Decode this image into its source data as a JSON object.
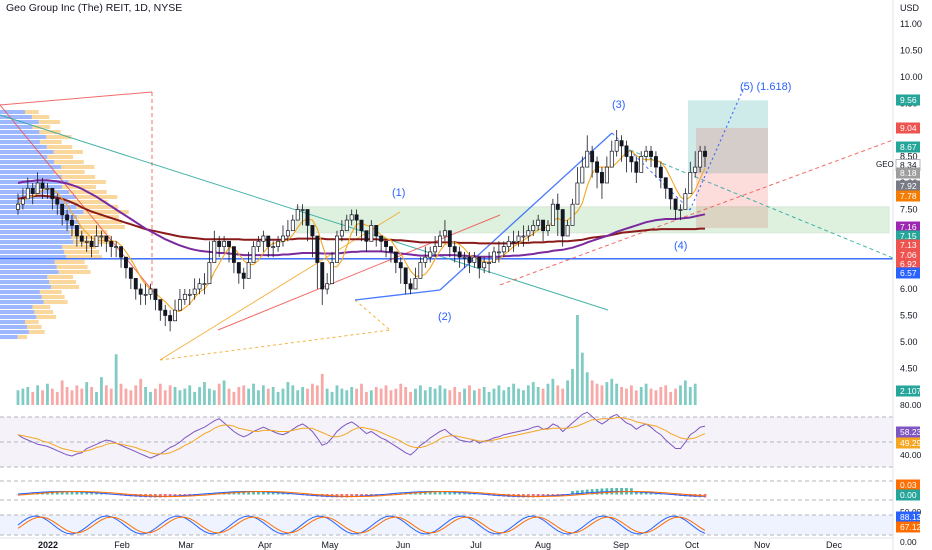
{
  "header": {
    "title": "Geo Group Inc (The) REIT, 1D, NYSE",
    "currency": "USD",
    "symbol": "GEO"
  },
  "colors": {
    "up": "#26a69a",
    "down": "#ef5350",
    "ma_long": "#8b1a1a",
    "ma_mid": "#7b2a9e",
    "ma_short": "#f5a623",
    "support": "#2962ff",
    "box_green": "#4caf50",
    "rsi": "#7e57c2",
    "rsi_ma": "#f5a623",
    "zone_green": "#26a69a",
    "zone_red": "#ef5350"
  },
  "chart_data": {
    "type": "candlestick",
    "x_ticks": [
      "2022",
      "Feb",
      "Mar",
      "Apr",
      "May",
      "Jun",
      "Jul",
      "Aug",
      "Sep",
      "Oct",
      "Nov",
      "Dec"
    ],
    "y_ticks": [
      "11.00",
      "10.50",
      "10.00",
      "9.50",
      "9.00",
      "8.50",
      "8.00",
      "7.50",
      "7.00",
      "6.50",
      "6.00",
      "5.50",
      "5.00",
      "4.50"
    ],
    "ylim": [
      4.2,
      11.2
    ],
    "closes": [
      7.6,
      7.7,
      7.9,
      7.8,
      8.0,
      7.9,
      7.9,
      7.7,
      7.6,
      7.4,
      7.3,
      7.2,
      7.0,
      6.9,
      6.9,
      6.8,
      7.0,
      7.0,
      6.9,
      6.8,
      6.8,
      6.6,
      6.4,
      6.2,
      6.0,
      5.9,
      5.9,
      6.0,
      5.8,
      5.6,
      5.5,
      5.4,
      5.6,
      5.8,
      5.9,
      5.9,
      6.0,
      6.1,
      6.1,
      6.5,
      6.9,
      6.8,
      6.9,
      6.8,
      6.5,
      6.3,
      6.2,
      6.5,
      6.8,
      6.9,
      7.0,
      6.8,
      6.8,
      6.9,
      7.0,
      7.1,
      7.3,
      7.5,
      7.5,
      7.2,
      7.0,
      6.5,
      6.0,
      6.1,
      6.5,
      7.0,
      7.1,
      7.3,
      7.4,
      7.3,
      7.1,
      6.9,
      7.2,
      7.0,
      6.9,
      6.8,
      6.7,
      6.5,
      6.4,
      6.1,
      6.0,
      6.2,
      6.5,
      6.6,
      6.7,
      6.8,
      7.0,
      7.1,
      6.8,
      6.7,
      6.6,
      6.6,
      6.5,
      6.6,
      6.4,
      6.5,
      6.5,
      6.7,
      6.7,
      6.8,
      6.9,
      6.9,
      7.0,
      7.0,
      7.1,
      7.2,
      7.3,
      7.1,
      7.2,
      7.6,
      7.5,
      7.0,
      7.2,
      7.6,
      8.0,
      8.3,
      8.6,
      8.4,
      8.2,
      8.0,
      8.3,
      8.6,
      8.8,
      8.7,
      8.5,
      8.4,
      8.2,
      8.5,
      8.6,
      8.5,
      8.3,
      8.1,
      7.9,
      7.7,
      7.5,
      7.5,
      7.8,
      8.2,
      8.3,
      8.6,
      8.5
    ],
    "highs": [
      7.8,
      7.9,
      8.1,
      8.0,
      8.2,
      8.1,
      8.0,
      7.9,
      7.8,
      7.6,
      7.5,
      7.4,
      7.2,
      7.1,
      7.0,
      7.0,
      7.2,
      7.1,
      7.0,
      7.0,
      6.9,
      6.8,
      6.6,
      6.4,
      6.2,
      6.1,
      6.1,
      6.1,
      6.0,
      5.8,
      5.7,
      5.6,
      5.8,
      6.0,
      6.0,
      6.0,
      6.2,
      6.2,
      6.3,
      6.9,
      7.1,
      7.0,
      7.0,
      6.9,
      6.8,
      6.5,
      6.4,
      6.7,
      6.9,
      7.0,
      7.1,
      7.0,
      6.9,
      7.0,
      7.2,
      7.3,
      7.4,
      7.6,
      7.6,
      7.5,
      7.2,
      7.0,
      6.5,
      6.3,
      6.7,
      7.1,
      7.3,
      7.4,
      7.5,
      7.5,
      7.3,
      7.1,
      7.3,
      7.2,
      7.0,
      6.9,
      6.8,
      6.7,
      6.6,
      6.4,
      6.2,
      6.4,
      6.6,
      6.8,
      6.8,
      7.0,
      7.1,
      7.3,
      7.1,
      6.9,
      6.8,
      6.7,
      6.7,
      6.7,
      6.6,
      6.6,
      6.7,
      6.8,
      6.9,
      6.9,
      7.0,
      7.1,
      7.1,
      7.2,
      7.2,
      7.3,
      7.4,
      7.3,
      7.3,
      7.7,
      7.8,
      7.5,
      7.3,
      7.7,
      8.3,
      8.5,
      8.9,
      8.7,
      8.5,
      8.3,
      8.5,
      8.8,
      9.0,
      8.9,
      8.8,
      8.6,
      8.5,
      8.6,
      8.7,
      8.7,
      8.6,
      8.4,
      8.1,
      7.9,
      7.7,
      7.6,
      7.9,
      8.4,
      8.6,
      8.7,
      8.7
    ],
    "lows": [
      7.4,
      7.5,
      7.7,
      7.6,
      7.8,
      7.7,
      7.7,
      7.5,
      7.4,
      7.2,
      7.1,
      7.0,
      6.8,
      6.8,
      6.7,
      6.6,
      6.8,
      6.8,
      6.7,
      6.6,
      6.6,
      6.4,
      6.2,
      6.0,
      5.8,
      5.7,
      5.7,
      5.8,
      5.6,
      5.4,
      5.3,
      5.2,
      5.4,
      5.6,
      5.7,
      5.7,
      5.8,
      5.9,
      5.9,
      6.3,
      6.7,
      6.6,
      6.7,
      6.5,
      6.3,
      6.1,
      6.0,
      6.3,
      6.6,
      6.7,
      6.7,
      6.6,
      6.6,
      6.7,
      6.8,
      6.9,
      7.1,
      7.3,
      7.2,
      6.9,
      6.6,
      6.0,
      5.7,
      5.9,
      6.3,
      6.8,
      6.9,
      7.1,
      7.2,
      7.0,
      6.9,
      6.7,
      6.9,
      6.8,
      6.7,
      6.6,
      6.5,
      6.3,
      6.1,
      5.9,
      5.9,
      6.0,
      6.3,
      6.4,
      6.5,
      6.6,
      6.8,
      6.9,
      6.6,
      6.5,
      6.4,
      6.4,
      6.3,
      6.4,
      6.2,
      6.3,
      6.3,
      6.5,
      6.5,
      6.6,
      6.7,
      6.7,
      6.8,
      6.8,
      6.9,
      7.0,
      7.1,
      6.9,
      7.0,
      7.2,
      7.0,
      6.8,
      7.0,
      7.3,
      7.8,
      8.0,
      8.4,
      8.1,
      7.9,
      7.7,
      8.0,
      8.4,
      8.5,
      8.4,
      8.2,
      8.2,
      8.0,
      8.2,
      8.4,
      8.3,
      8.1,
      7.9,
      7.7,
      7.5,
      7.3,
      7.3,
      7.5,
      7.9,
      8.1,
      8.2,
      8.3
    ],
    "ma_long": [
      7.7,
      7.72,
      7.74,
      7.75,
      7.76,
      7.76,
      7.75,
      7.74,
      7.72,
      7.7,
      7.67,
      7.63,
      7.59,
      7.54,
      7.5,
      7.46,
      7.43,
      7.4,
      7.37,
      7.34,
      7.31,
      7.28,
      7.25,
      7.22,
      7.19,
      7.16,
      7.13,
      7.11,
      7.09,
      7.07,
      7.05,
      7.03,
      7.01,
      6.99,
      6.98,
      6.97,
      6.96,
      6.95,
      6.94,
      6.94,
      6.94,
      6.94,
      6.94,
      6.94,
      6.94,
      6.94,
      6.93,
      6.93,
      6.93,
      6.93,
      6.93,
      6.93,
      6.93,
      6.93,
      6.93,
      6.94,
      6.94,
      6.95,
      6.95,
      6.95,
      6.95,
      6.95,
      6.95,
      6.94,
      6.94,
      6.94,
      6.94,
      6.94,
      6.94,
      6.94,
      6.94,
      6.94,
      6.94,
      6.94,
      6.93,
      6.93,
      6.93,
      6.92,
      6.92,
      6.91,
      6.9,
      6.89,
      6.88,
      6.88,
      6.88,
      6.88,
      6.88,
      6.88,
      6.88,
      6.88,
      6.87,
      6.87,
      6.87,
      6.87,
      6.86,
      6.86,
      6.86,
      6.86,
      6.86,
      6.86,
      6.86,
      6.86,
      6.87,
      6.87,
      6.87,
      6.88,
      6.88,
      6.88,
      6.89,
      6.89,
      6.9,
      6.9,
      6.9,
      6.91,
      6.92,
      6.93,
      6.95,
      6.97,
      6.98,
      6.99,
      7.0,
      7.02,
      7.04,
      7.06,
      7.07,
      7.08,
      7.09,
      7.1,
      7.11,
      7.12,
      7.12,
      7.13,
      7.13,
      7.13,
      7.13,
      7.13,
      7.13,
      7.13,
      7.13,
      7.14,
      7.14
    ],
    "ma_mid": [
      8.0,
      8.02,
      8.03,
      8.04,
      8.05,
      8.05,
      8.05,
      8.04,
      8.03,
      8.01,
      7.99,
      7.96,
      7.93,
      7.89,
      7.84,
      7.79,
      7.74,
      7.68,
      7.62,
      7.56,
      7.5,
      7.44,
      7.38,
      7.32,
      7.26,
      7.2,
      7.14,
      7.09,
      7.04,
      6.99,
      6.94,
      6.9,
      6.86,
      6.82,
      6.79,
      6.76,
      6.74,
      6.72,
      6.71,
      6.7,
      6.69,
      6.68,
      6.68,
      6.67,
      6.66,
      6.65,
      6.64,
      6.64,
      6.64,
      6.64,
      6.64,
      6.64,
      6.64,
      6.64,
      6.65,
      6.65,
      6.66,
      6.67,
      6.68,
      6.68,
      6.68,
      6.68,
      6.67,
      6.67,
      6.67,
      6.67,
      6.68,
      6.69,
      6.7,
      6.7,
      6.71,
      6.71,
      6.71,
      6.71,
      6.71,
      6.7,
      6.69,
      6.68,
      6.67,
      6.66,
      6.65,
      6.64,
      6.63,
      6.63,
      6.63,
      6.63,
      6.64,
      6.64,
      6.64,
      6.64,
      6.63,
      6.63,
      6.62,
      6.62,
      6.61,
      6.61,
      6.61,
      6.61,
      6.61,
      6.62,
      6.62,
      6.63,
      6.63,
      6.64,
      6.65,
      6.66,
      6.68,
      6.69,
      6.7,
      6.72,
      6.73,
      6.74,
      6.76,
      6.78,
      6.81,
      6.84,
      6.88,
      6.91,
      6.94,
      6.97,
      7.0,
      7.04,
      7.08,
      7.11,
      7.14,
      7.17,
      7.2,
      7.23,
      7.26,
      7.28,
      7.3,
      7.31,
      7.32,
      7.32,
      7.32,
      7.33,
      7.34,
      7.35,
      7.37,
      7.39,
      7.41
    ],
    "volumes": [
      0.9,
      1.0,
      1.1,
      0.8,
      1.2,
      0.9,
      1.3,
      1.0,
      0.8,
      1.5,
      1.1,
      0.9,
      1.2,
      1.0,
      1.4,
      1.1,
      0.8,
      1.7,
      1.2,
      1.0,
      3.1,
      1.3,
      1.0,
      0.9,
      1.2,
      1.6,
      1.1,
      0.8,
      1.0,
      1.3,
      0.9,
      1.2,
      1.1,
      0.9,
      1.0,
      1.2,
      0.8,
      1.1,
      1.4,
      1.0,
      0.9,
      1.3,
      1.5,
      1.0,
      0.8,
      1.1,
      1.2,
      1.0,
      1.3,
      0.9,
      1.2,
      1.0,
      1.1,
      0.8,
      1.0,
      1.4,
      1.2,
      0.9,
      1.1,
      1.0,
      1.3,
      1.2,
      1.9,
      1.0,
      0.8,
      1.2,
      1.0,
      0.9,
      1.1,
      1.0,
      1.3,
      0.8,
      0.9,
      1.1,
      1.0,
      1.2,
      0.9,
      1.0,
      1.3,
      1.1,
      0.8,
      1.0,
      1.2,
      0.9,
      1.1,
      1.0,
      1.2,
      1.0,
      0.9,
      1.1,
      0.8,
      1.0,
      1.2,
      0.9,
      1.0,
      1.1,
      0.8,
      1.0,
      1.2,
      0.9,
      1.1,
      1.3,
      1.0,
      0.9,
      1.2,
      1.4,
      1.1,
      1.0,
      1.3,
      1.6,
      1.2,
      1.0,
      1.5,
      2.2,
      5.5,
      3.2,
      2.0,
      1.5,
      1.3,
      1.2,
      1.4,
      1.6,
      1.3,
      1.1,
      1.0,
      1.2,
      0.9,
      1.1,
      1.3,
      1.0,
      0.9,
      1.1,
      1.2,
      0.8,
      1.0,
      1.2,
      1.5,
      1.1,
      1.3
    ],
    "volume_label": "2.107M",
    "wave_labels": [
      "(1)",
      "(2)",
      "(3)",
      "(4)",
      "(5) (1.618)"
    ],
    "price_tags": [
      {
        "text": "9.56",
        "value": 9.56,
        "color": "#26a69a"
      },
      {
        "text": "9.04",
        "value": 9.04,
        "color": "#ef5350"
      },
      {
        "text": "8.67",
        "value": 8.67,
        "color": "#26a69a"
      },
      {
        "text": "8.34",
        "value": 8.34,
        "color": "#ffffff"
      },
      {
        "text": "8.18",
        "value": 8.18,
        "color": "#9e9e9e"
      },
      {
        "text": "7.92",
        "value": 7.92,
        "color": "#787b86"
      },
      {
        "text": "7.78",
        "value": 7.78,
        "color": "#f57c00"
      },
      {
        "text": "7.16",
        "value": 7.16,
        "color": "#9c27b0"
      },
      {
        "text": "7.15",
        "value": 7.15,
        "color": "#26a69a"
      },
      {
        "text": "7.13",
        "value": 7.13,
        "color": "#ef5350"
      },
      {
        "text": "7.06",
        "value": 7.06,
        "color": "#ef5350"
      },
      {
        "text": "6.92",
        "value": 6.92,
        "color": "#ef5350"
      },
      {
        "text": "6.57",
        "value": 6.57,
        "color": "#2962ff"
      }
    ],
    "levels": {
      "support": 6.57,
      "box_top": 7.55,
      "box_bottom": 7.06,
      "target_top": 9.56,
      "stop_top": 9.04
    },
    "rsi": {
      "ticks": [
        "80.00",
        "40.00"
      ],
      "values": [
        55,
        52,
        50,
        48,
        46,
        45,
        44,
        42,
        40,
        38,
        36,
        35,
        37,
        38,
        42,
        44,
        46,
        48,
        50,
        49,
        47,
        45,
        43,
        41,
        39,
        37,
        35,
        33,
        35,
        37,
        40,
        43,
        45,
        48,
        52,
        55,
        58,
        60,
        62,
        65,
        68,
        70,
        66,
        62,
        58,
        55,
        53,
        55,
        58,
        60,
        62,
        60,
        58,
        56,
        55,
        57,
        60,
        63,
        65,
        62,
        58,
        52,
        45,
        47,
        52,
        58,
        62,
        65,
        67,
        64,
        60,
        56,
        58,
        55,
        52,
        50,
        47,
        44,
        41,
        38,
        36,
        40,
        45,
        48,
        52,
        55,
        58,
        60,
        56,
        53,
        50,
        49,
        48,
        50,
        47,
        49,
        50,
        52,
        53,
        55,
        56,
        57,
        58,
        59,
        60,
        62,
        63,
        60,
        61,
        65,
        63,
        58,
        62,
        66,
        70,
        74,
        76,
        72,
        68,
        65,
        68,
        72,
        74,
        70,
        66,
        64,
        60,
        63,
        65,
        62,
        58,
        55,
        50,
        46,
        42,
        42,
        48,
        55,
        58,
        62,
        63
      ],
      "ma": [
        55,
        54,
        53,
        52,
        51,
        49,
        48,
        46,
        44,
        42,
        41,
        40,
        39,
        39,
        40,
        41,
        43,
        44,
        46,
        47,
        47,
        46,
        45,
        44,
        43,
        41,
        40,
        38,
        37,
        37,
        37,
        38,
        40,
        42,
        45,
        47,
        50,
        53,
        56,
        58,
        61,
        63,
        64,
        64,
        63,
        61,
        60,
        59,
        58,
        58,
        59,
        59,
        59,
        58,
        58,
        58,
        59,
        60,
        61,
        61,
        61,
        59,
        57,
        55,
        53,
        53,
        54,
        56,
        59,
        61,
        62,
        61,
        60,
        59,
        57,
        55,
        53,
        51,
        49,
        46,
        44,
        43,
        43,
        44,
        46,
        48,
        51,
        53,
        54,
        54,
        53,
        52,
        51,
        50,
        49,
        49,
        49,
        50,
        51,
        52,
        53,
        54,
        55,
        56,
        57,
        58,
        59,
        60,
        60,
        61,
        61,
        61,
        61,
        62,
        63,
        65,
        67,
        69,
        69,
        70,
        70,
        70,
        71,
        71,
        70,
        69,
        67,
        66,
        65,
        64,
        63,
        61,
        59,
        56,
        54,
        52,
        51,
        51,
        52,
        54,
        56
      ],
      "value_a": "58.23",
      "value_b": "49.29"
    },
    "macd": {
      "value_a": "0.03",
      "value_b": "0.00"
    },
    "stoch": {
      "ticks": [
        "50.00",
        "0.00"
      ],
      "value_a": "88.13",
      "value_b": "67.12"
    }
  }
}
